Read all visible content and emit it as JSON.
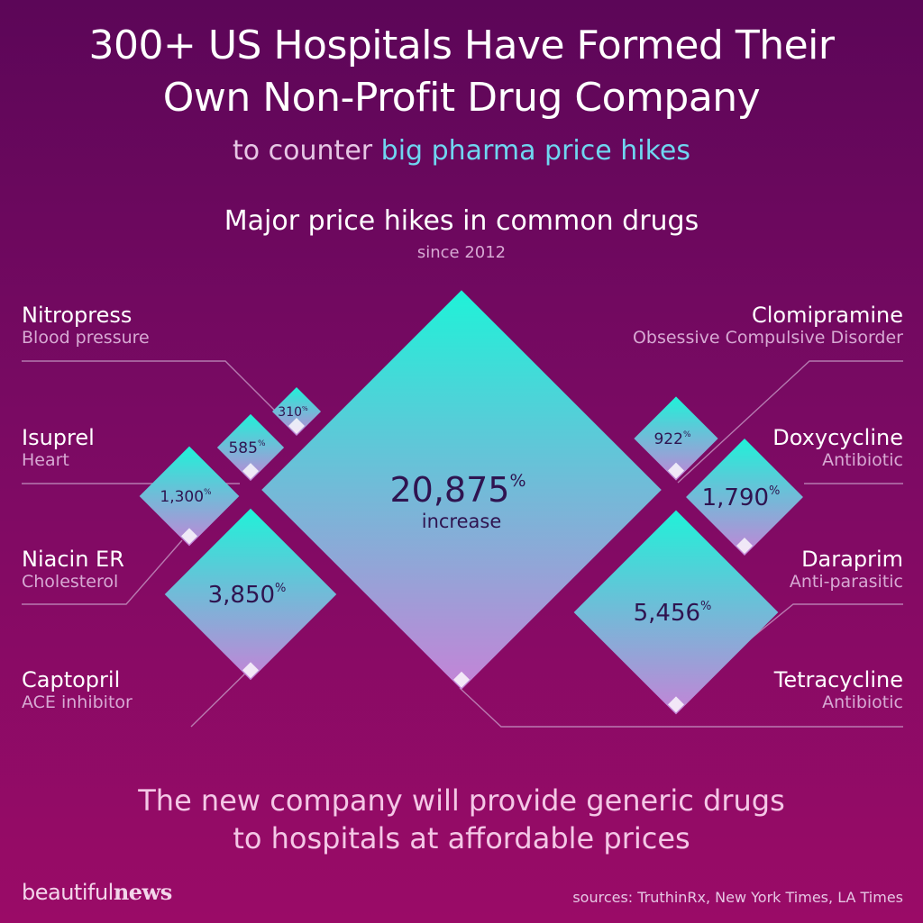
{
  "header": {
    "title_line1": "300+ US Hospitals Have Formed Their",
    "title_line2": "Own Non-Profit Drug Company",
    "subtitle_prefix": "to counter",
    "subtitle_highlight": "big pharma price hikes"
  },
  "chart_data": {
    "type": "diamond-area",
    "title": "Major price hikes in common drugs",
    "subtitle": "since 2012",
    "unit": "%",
    "center_sublabel": "increase",
    "items": [
      {
        "name": "Nitropress",
        "category": "Blood pressure",
        "value": 310,
        "label": "310"
      },
      {
        "name": "Isuprel",
        "category": "Heart",
        "value": 585,
        "label": "585"
      },
      {
        "name": "Niacin ER",
        "category": "Cholesterol",
        "value": 1300,
        "label": "1,300"
      },
      {
        "name": "Captopril",
        "category": "ACE inhibitor",
        "value": 3850,
        "label": "3,850"
      },
      {
        "name": "Clomipramine",
        "category": "Obsessive Compulsive Disorder",
        "value": 922,
        "label": "922"
      },
      {
        "name": "Doxycycline",
        "category": "Antibiotic",
        "value": 1790,
        "label": "1,790"
      },
      {
        "name": "Daraprim",
        "category": "Anti-parasitic",
        "value": 5456,
        "label": "5,456"
      },
      {
        "name": "Tetracycline",
        "category": "Antibiotic",
        "value": 20875,
        "label": "20,875"
      }
    ],
    "colors": {
      "top": "#1ff2d8",
      "bottom": "#c583d7",
      "text": "#2f1450",
      "connector": "#c9a0c9"
    }
  },
  "footer": {
    "message_line1": "The new company will provide generic drugs",
    "message_line2": "to hospitals at affordable prices",
    "brand_light": "beautiful",
    "brand_bold": "news",
    "sources": "sources: TruthinRx, New York Times, LA Times"
  }
}
